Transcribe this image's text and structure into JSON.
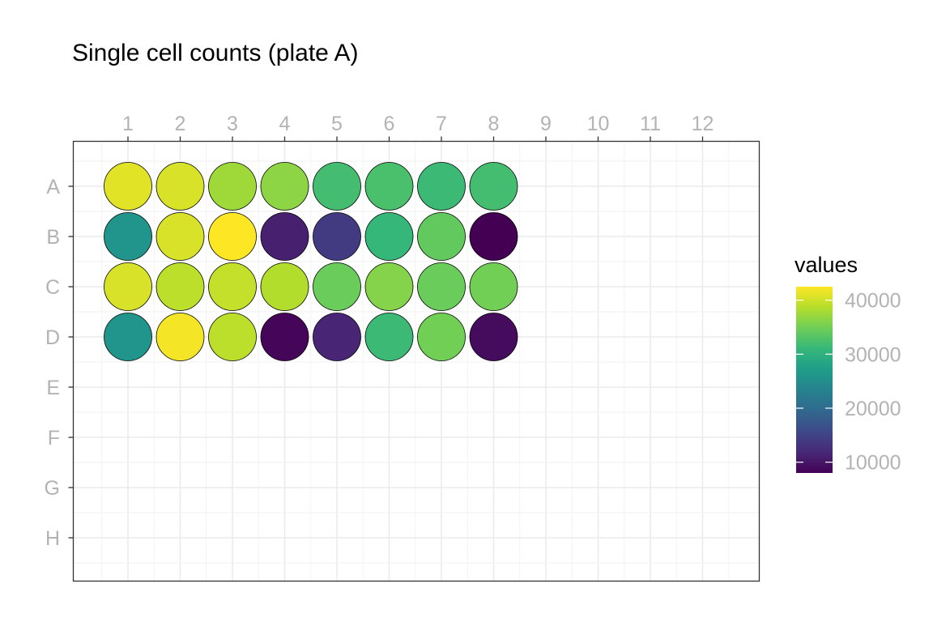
{
  "chart_data": {
    "type": "heatmap",
    "title": "Single cell counts (plate A)",
    "columns": [
      "1",
      "2",
      "3",
      "4",
      "5",
      "6",
      "7",
      "8",
      "9",
      "10",
      "11",
      "12"
    ],
    "rows": [
      "A",
      "B",
      "C",
      "D",
      "E",
      "F",
      "G",
      "H"
    ],
    "values": [
      [
        41000,
        40500,
        37500,
        36500,
        32000,
        32500,
        31500,
        32000,
        null,
        null,
        null,
        null
      ],
      [
        26000,
        40500,
        42500,
        11000,
        14000,
        31000,
        34000,
        8000,
        null,
        null,
        null,
        null
      ],
      [
        40500,
        39000,
        39500,
        38500,
        34500,
        36000,
        34500,
        35000,
        null,
        null,
        null,
        null
      ],
      [
        26000,
        42000,
        39000,
        8500,
        11500,
        31500,
        35000,
        9000,
        null,
        null,
        null,
        null
      ],
      [
        null,
        null,
        null,
        null,
        null,
        null,
        null,
        null,
        null,
        null,
        null,
        null
      ],
      [
        null,
        null,
        null,
        null,
        null,
        null,
        null,
        null,
        null,
        null,
        null,
        null
      ],
      [
        null,
        null,
        null,
        null,
        null,
        null,
        null,
        null,
        null,
        null,
        null,
        null
      ],
      [
        null,
        null,
        null,
        null,
        null,
        null,
        null,
        null,
        null,
        null,
        null,
        null
      ]
    ],
    "legend": {
      "title": "values",
      "ticks": [
        10000,
        20000,
        30000,
        40000
      ],
      "tick_labels": [
        "10000",
        "20000",
        "30000",
        "40000"
      ],
      "range": [
        8000,
        42500
      ],
      "placement": "right"
    },
    "color_scale": "viridis",
    "grid": true,
    "x_axis_position": "top"
  }
}
